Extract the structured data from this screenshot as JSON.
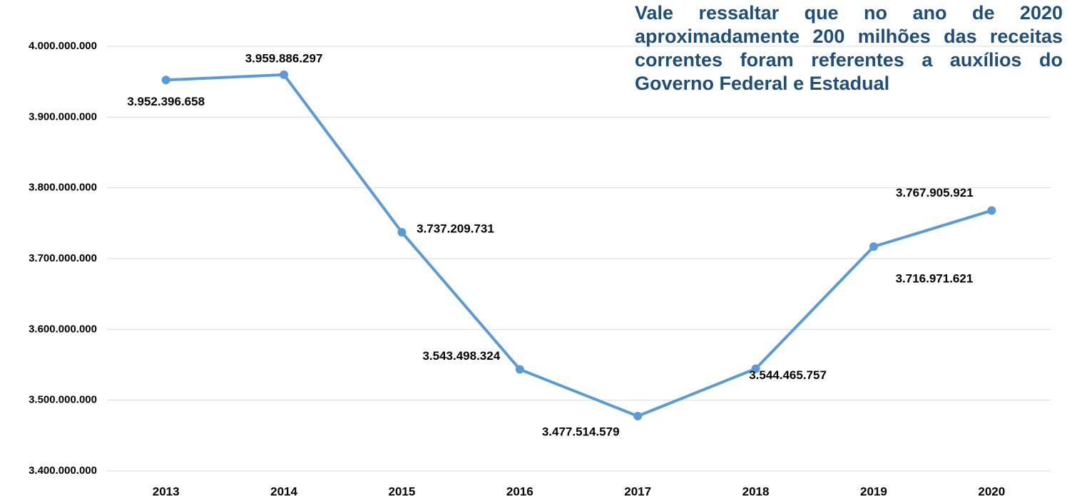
{
  "chart_data": {
    "type": "line",
    "annotation": "Vale ressaltar que no ano de 2020 aproximadamente 200 milhões das receitas correntes foram referentes a auxílios do Governo Federal e Estadual",
    "categories": [
      "2013",
      "2014",
      "2015",
      "2016",
      "2017",
      "2018",
      "2019",
      "2020"
    ],
    "series": [
      {
        "color": "#5b9bd5",
        "values": [
          3952396658,
          3959886297,
          3737209731,
          3543498324,
          3477514579,
          3544465757,
          3716971621,
          3767905921
        ],
        "value_labels": [
          "3.952.396.658",
          "3.959.886.297",
          "3.737.209.731",
          "3.543.498.324",
          "3.477.514.579",
          "3.544.465.757",
          "3.716.971.621",
          "3.767.905.921"
        ]
      }
    ],
    "ylim": [
      3400000000,
      4000000000
    ],
    "yticks": [
      {
        "value": 3400000000,
        "label": "3.400.000.000"
      },
      {
        "value": 3500000000,
        "label": "3.500.000.000"
      },
      {
        "value": 3600000000,
        "label": "3.600.000.000"
      },
      {
        "value": 3700000000,
        "label": "3.700.000.000"
      },
      {
        "value": 3800000000,
        "label": "3.800.000.000"
      },
      {
        "value": 3900000000,
        "label": "3.900.000.000"
      },
      {
        "value": 4000000000,
        "label": "4.000.000.000"
      }
    ],
    "grid": true
  }
}
